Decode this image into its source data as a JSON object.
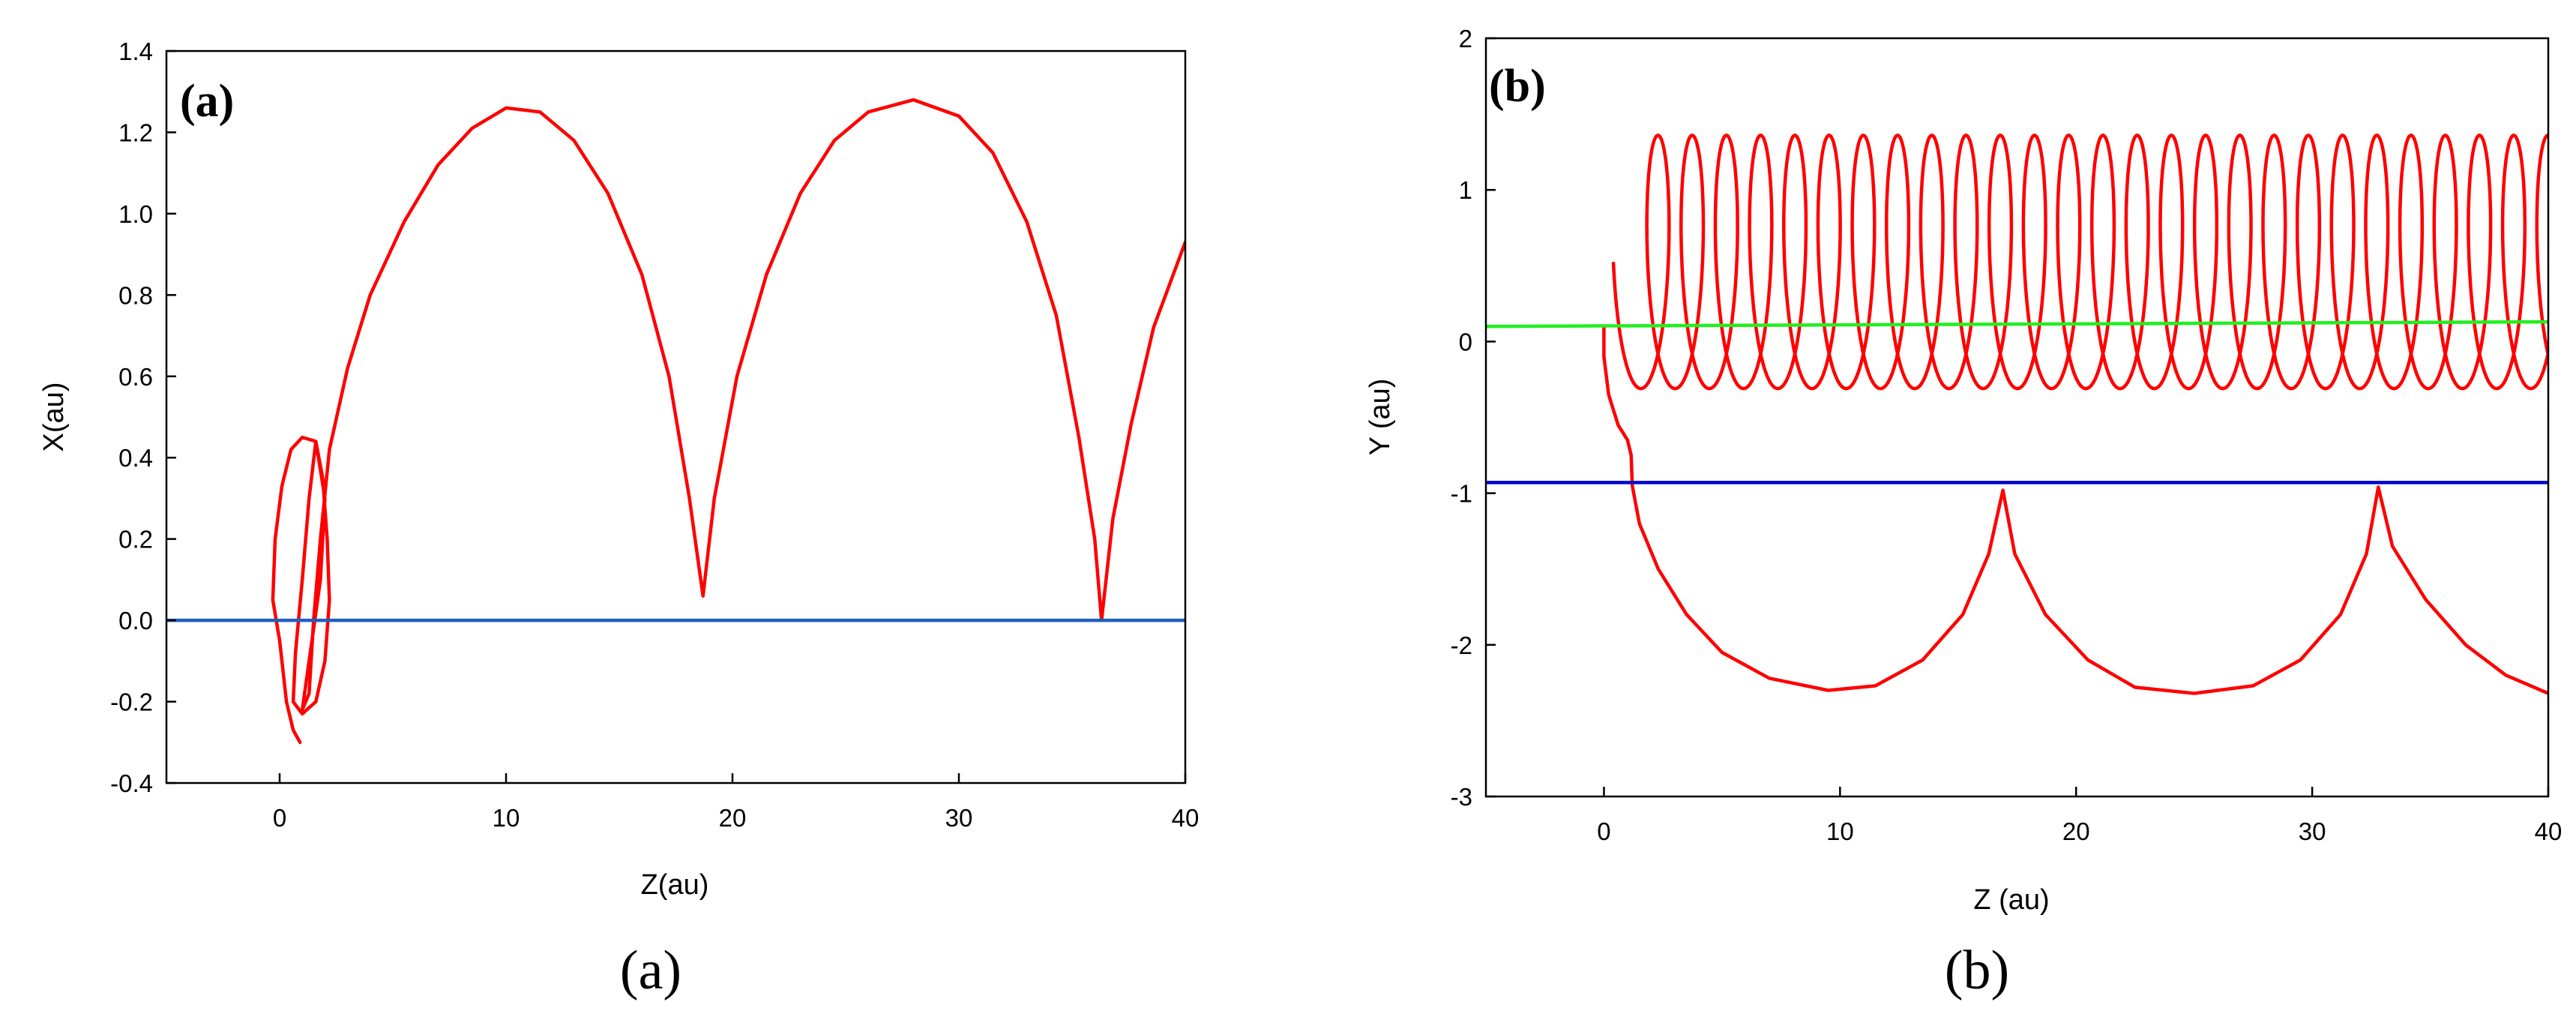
{
  "chart_data": [
    {
      "type": "line",
      "panel_label": "(a)",
      "caption": "(a)",
      "xlabel": "Z(au)",
      "ylabel": "X(au)",
      "xlim": [
        -5,
        40
      ],
      "ylim": [
        -0.4,
        1.4
      ],
      "xticks": [
        0,
        10,
        20,
        30,
        40
      ],
      "yticks": [
        -0.4,
        -0.2,
        0.0,
        0.2,
        0.4,
        0.6,
        0.8,
        1.0,
        1.2,
        1.4
      ],
      "ytick_labels": [
        "-0.4",
        "-0.2",
        "0.0",
        "0.2",
        "0.4",
        "0.6",
        "0.8",
        "1.0",
        "1.2",
        "1.4"
      ],
      "grid": false,
      "series": [
        {
          "color": "#ff0000",
          "points": [
            [
              0.9,
              -0.3
            ],
            [
              0.6,
              -0.27
            ],
            [
              0.3,
              -0.2
            ],
            [
              0.0,
              -0.05
            ],
            [
              -0.3,
              0.05
            ],
            [
              -0.2,
              0.2
            ],
            [
              0.1,
              0.33
            ],
            [
              0.5,
              0.42
            ],
            [
              1.0,
              0.45
            ],
            [
              1.6,
              0.44
            ],
            [
              1.9,
              0.35
            ],
            [
              2.1,
              0.2
            ],
            [
              2.2,
              0.05
            ],
            [
              2.0,
              -0.1
            ],
            [
              1.6,
              -0.2
            ],
            [
              1.0,
              -0.23
            ],
            [
              0.6,
              -0.2
            ],
            [
              0.7,
              -0.08
            ],
            [
              1.0,
              0.1
            ],
            [
              1.3,
              0.3
            ],
            [
              1.6,
              0.44
            ],
            [
              2.0,
              0.3
            ],
            [
              1.8,
              0.1
            ],
            [
              1.3,
              -0.1
            ],
            [
              1.0,
              -0.22
            ],
            [
              1.3,
              -0.18
            ],
            [
              1.5,
              0.0
            ],
            [
              1.8,
              0.2
            ],
            [
              2.2,
              0.42
            ],
            [
              3.0,
              0.62
            ],
            [
              4.0,
              0.8
            ],
            [
              5.5,
              0.98
            ],
            [
              7.0,
              1.12
            ],
            [
              8.5,
              1.21
            ],
            [
              10.0,
              1.26
            ],
            [
              11.5,
              1.25
            ],
            [
              13.0,
              1.18
            ],
            [
              14.5,
              1.05
            ],
            [
              16.0,
              0.85
            ],
            [
              17.2,
              0.6
            ],
            [
              18.1,
              0.3
            ],
            [
              18.7,
              0.06
            ],
            [
              19.2,
              0.3
            ],
            [
              20.2,
              0.6
            ],
            [
              21.5,
              0.85
            ],
            [
              23.0,
              1.05
            ],
            [
              24.5,
              1.18
            ],
            [
              26.0,
              1.25
            ],
            [
              28.0,
              1.28
            ],
            [
              30.0,
              1.24
            ],
            [
              31.5,
              1.15
            ],
            [
              33.0,
              0.98
            ],
            [
              34.3,
              0.75
            ],
            [
              35.3,
              0.45
            ],
            [
              36.0,
              0.2
            ],
            [
              36.3,
              0.0
            ],
            [
              36.8,
              0.25
            ],
            [
              37.6,
              0.48
            ],
            [
              38.6,
              0.72
            ],
            [
              40.0,
              0.93
            ]
          ]
        },
        {
          "color": "#1f5fbf",
          "points": [
            [
              -5,
              0.0
            ],
            [
              40,
              0.0
            ]
          ]
        }
      ]
    },
    {
      "type": "line",
      "panel_label": "(b)",
      "caption": "(b)",
      "xlabel": "Z (au)",
      "ylabel": "Y (au)",
      "xlim": [
        -5,
        40
      ],
      "ylim": [
        -3,
        2
      ],
      "xticks": [
        0,
        10,
        20,
        30,
        40
      ],
      "yticks": [
        -3,
        -2,
        -1,
        0,
        1,
        2
      ],
      "ytick_labels": [
        "-3",
        "-2",
        "-1",
        "0",
        "1",
        "2"
      ],
      "grid": false,
      "helix": {
        "color": "#ff0000",
        "z_start": 0.0,
        "z_start_center": 1.2,
        "loop_period_z": 1.45,
        "loop_half_width_z": 0.8,
        "y_max": 1.36,
        "y_min": -0.31,
        "z_end": 40
      },
      "series": [
        {
          "color": "#ff0000",
          "points": [
            [
              1.2,
              -0.95
            ],
            [
              1.15,
              -0.75
            ],
            [
              1.0,
              -0.65
            ],
            [
              0.6,
              -0.55
            ],
            [
              0.2,
              -0.35
            ],
            [
              0.0,
              -0.1
            ],
            [
              0.0,
              0.1
            ]
          ]
        },
        {
          "color": "#ff0000",
          "points": [
            [
              1.2,
              -0.95
            ],
            [
              1.5,
              -1.2
            ],
            [
              2.3,
              -1.5
            ],
            [
              3.5,
              -1.8
            ],
            [
              5.0,
              -2.05
            ],
            [
              7.0,
              -2.22
            ],
            [
              9.5,
              -2.3
            ],
            [
              11.5,
              -2.27
            ],
            [
              13.5,
              -2.1
            ],
            [
              15.2,
              -1.8
            ],
            [
              16.3,
              -1.4
            ],
            [
              16.9,
              -0.98
            ],
            [
              17.4,
              -1.4
            ],
            [
              18.7,
              -1.8
            ],
            [
              20.5,
              -2.1
            ],
            [
              22.5,
              -2.28
            ],
            [
              25.0,
              -2.32
            ],
            [
              27.5,
              -2.27
            ],
            [
              29.5,
              -2.1
            ],
            [
              31.2,
              -1.8
            ],
            [
              32.3,
              -1.4
            ],
            [
              32.8,
              -0.96
            ],
            [
              33.4,
              -1.35
            ],
            [
              34.8,
              -1.7
            ],
            [
              36.5,
              -2.0
            ],
            [
              38.2,
              -2.2
            ],
            [
              40.0,
              -2.32
            ]
          ]
        },
        {
          "color": "#22ee22",
          "points": [
            [
              -5,
              0.1
            ],
            [
              40,
              0.13
            ]
          ]
        },
        {
          "color": "#0000cc",
          "points": [
            [
              -5,
              -0.93
            ],
            [
              40,
              -0.93
            ]
          ]
        }
      ]
    }
  ]
}
